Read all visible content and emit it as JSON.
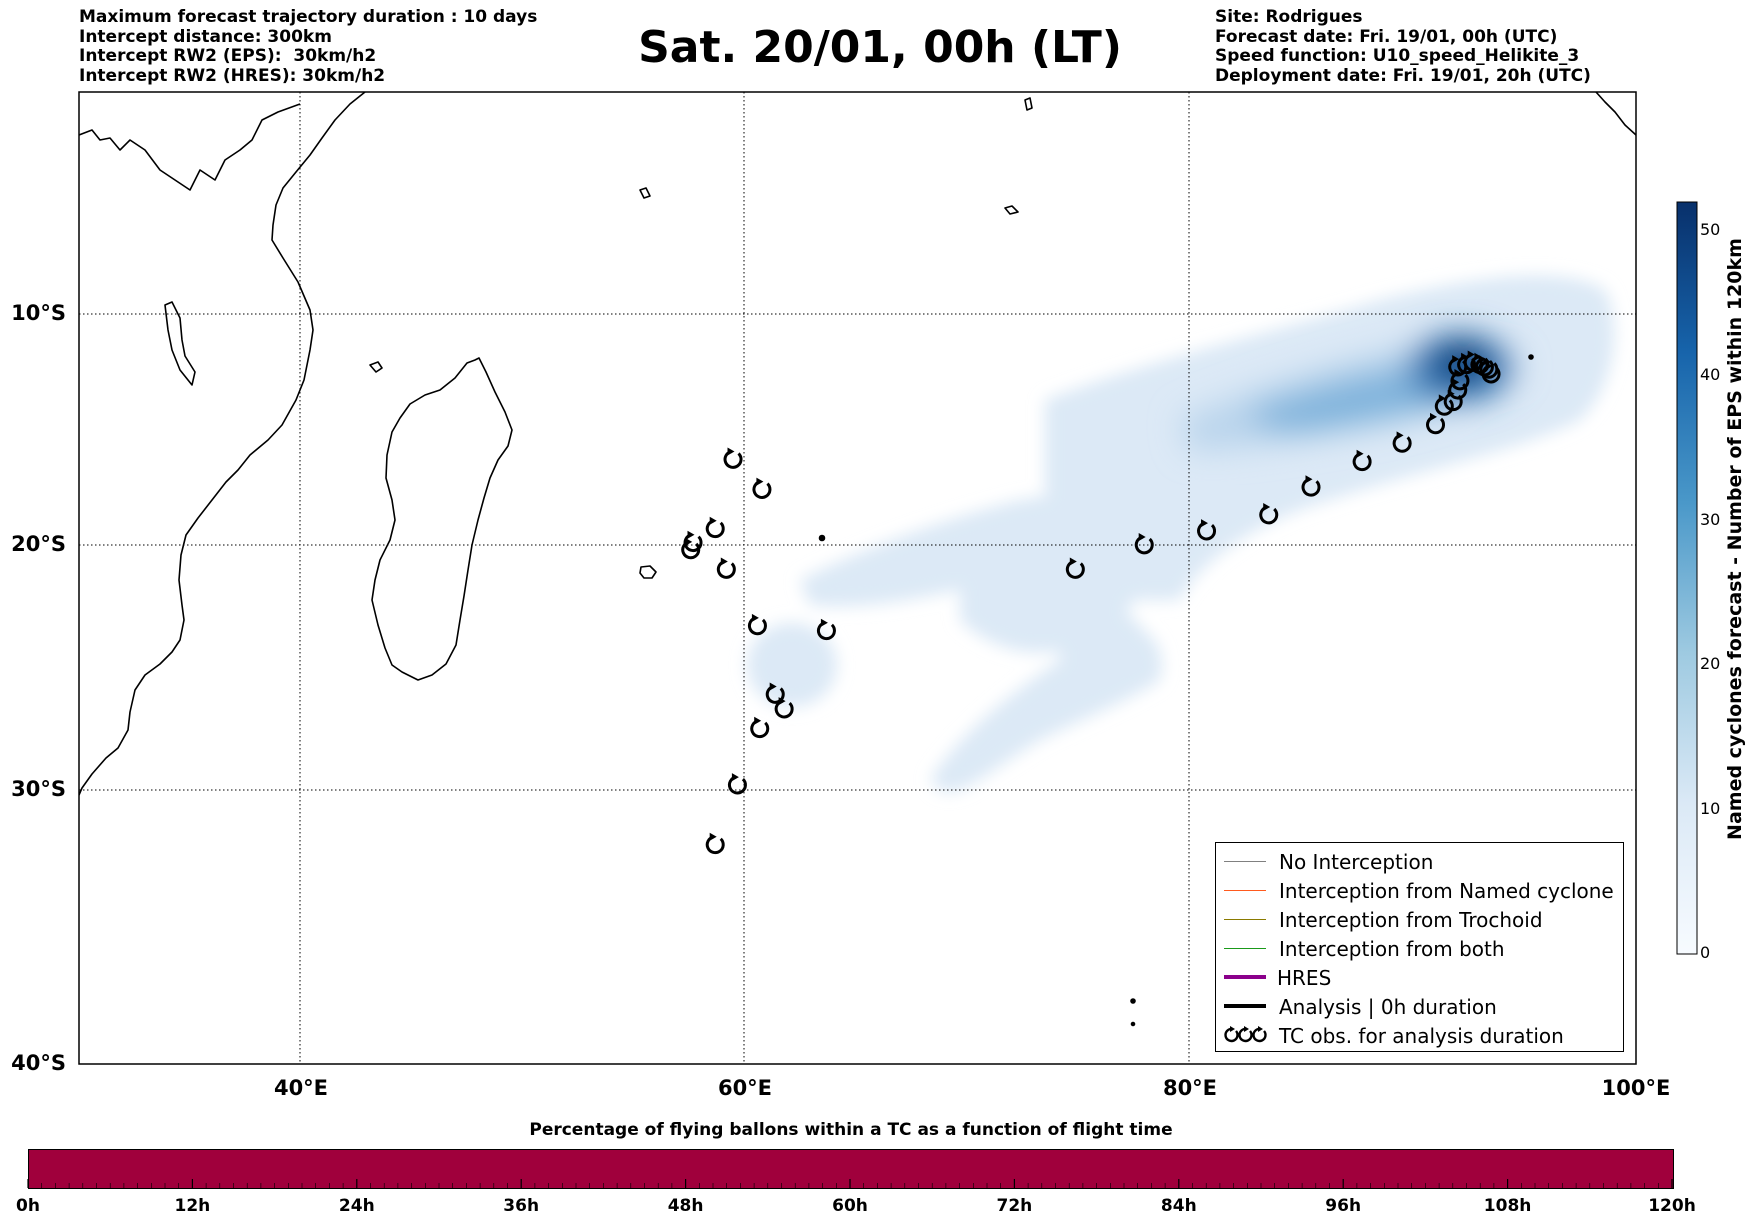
{
  "header": {
    "left_lines": [
      "Maximum forecast trajectory duration : 10 days",
      "Intercept distance: 300km",
      "Intercept RW2 (EPS):  30km/h2",
      "Intercept RW2 (HRES): 30km/h2"
    ],
    "title": "Sat. 20/01, 00h (LT)",
    "right_lines": [
      "Site: Rodrigues",
      "Forecast date: Fri. 19/01, 00h (UTC)",
      "Speed function: U10_speed_Helikite_3",
      "Deployment date: Fri. 19/01, 20h (UTC)"
    ]
  },
  "map": {
    "lon_labels": [
      "40°E",
      "60°E",
      "80°E",
      "100°E"
    ],
    "lat_labels": [
      "10°S",
      "20°S",
      "30°S",
      "40°S"
    ],
    "extent": {
      "lon": [
        30,
        100
      ],
      "lat": [
        -40,
        -0.8
      ]
    }
  },
  "colorbar": {
    "title": "Named cyclones forecast - Number of EPS within 120km",
    "ticks": [
      "0",
      "10",
      "20",
      "30",
      "40",
      "50"
    ],
    "range": [
      0,
      52
    ],
    "colors": [
      "#e3eef9",
      "#08306b"
    ]
  },
  "legend": {
    "items": [
      {
        "label": "No Interception",
        "color": "#808080",
        "style": "thin"
      },
      {
        "label": "Interception from Named cyclone",
        "color": "#ff5a1e",
        "style": "thin"
      },
      {
        "label": "Interception from Trochoid",
        "color": "#8a7a00",
        "style": "thin"
      },
      {
        "label": "Interception from both",
        "color": "#1a9a1a",
        "style": "thin"
      },
      {
        "label": "HRES",
        "color": "#8b008b",
        "style": "thick"
      },
      {
        "label": "Analysis | 0h duration",
        "color": "#000000",
        "style": "thick"
      },
      {
        "label": "TC obs. for analysis duration",
        "color": "#000000",
        "style": "symbol"
      }
    ]
  },
  "tc_obs": {
    "main_track": [
      [
        74.9,
        -21.0
      ],
      [
        78.0,
        -20.0
      ],
      [
        80.8,
        -19.4
      ],
      [
        83.6,
        -18.7
      ],
      [
        85.5,
        -17.5
      ],
      [
        87.8,
        -16.4
      ],
      [
        89.6,
        -15.6
      ],
      [
        91.1,
        -14.8
      ],
      [
        91.5,
        -14.0
      ],
      [
        91.9,
        -13.8
      ],
      [
        92.1,
        -13.3
      ],
      [
        92.2,
        -12.9
      ],
      [
        92.1,
        -12.3
      ],
      [
        92.5,
        -12.2
      ],
      [
        92.8,
        -12.1
      ],
      [
        93.1,
        -12.2
      ],
      [
        93.3,
        -12.3
      ],
      [
        93.5,
        -12.4
      ],
      [
        93.6,
        -12.6
      ]
    ],
    "other_obs": [
      [
        59.5,
        -16.3
      ],
      [
        60.8,
        -17.6
      ],
      [
        57.7,
        -19.9
      ],
      [
        57.6,
        -20.2
      ],
      [
        58.7,
        -19.3
      ],
      [
        59.2,
        -21.0
      ],
      [
        60.6,
        -23.3
      ],
      [
        63.7,
        -23.5
      ],
      [
        61.4,
        -26.1
      ],
      [
        61.8,
        -26.7
      ],
      [
        60.7,
        -27.5
      ],
      [
        59.7,
        -29.8
      ],
      [
        58.7,
        -32.0
      ]
    ]
  },
  "density": {
    "core": [
      {
        "lon": 92.6,
        "lat": -12.4,
        "count": 48
      },
      {
        "lon": 90.5,
        "lat": -13.2,
        "count": 34
      },
      {
        "lon": 87.5,
        "lat": -14.4,
        "count": 24
      },
      {
        "lon": 84.0,
        "lat": -15.0,
        "count": 14
      },
      {
        "lon": 80.0,
        "lat": -16.8,
        "count": 6
      },
      {
        "lon": 76.0,
        "lat": -18.0,
        "count": 3
      }
    ]
  },
  "bottom_bar": {
    "title": "Percentage of flying ballons within a TC as a function of flight time",
    "color": "#a0003c",
    "ticks": [
      "0h",
      "12h",
      "24h",
      "36h",
      "48h",
      "60h",
      "72h",
      "84h",
      "96h",
      "108h",
      "120h"
    ]
  }
}
